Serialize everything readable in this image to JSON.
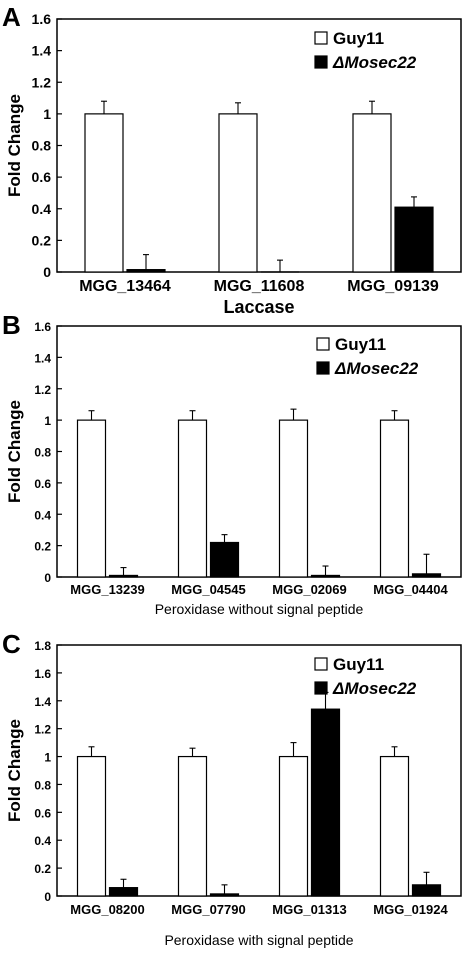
{
  "chart_data": [
    {
      "type": "bar",
      "panel": "A",
      "ylabel": "Fold Change",
      "xlabel": "Laccase",
      "ylim": [
        0,
        1.6
      ],
      "yticks": [
        "0",
        "0.2",
        "0.4",
        "0.6",
        "0.8",
        "1",
        "1.2",
        "1.4",
        "1.6"
      ],
      "legend_position": "top-right",
      "categories": [
        "MGG_13464",
        "MGG_11608",
        "MGG_09139"
      ],
      "series": [
        {
          "name": "Guy11",
          "fill": "#ffffff",
          "values": [
            1.0,
            1.0,
            1.0
          ],
          "errors": [
            0.08,
            0.07,
            0.08
          ]
        },
        {
          "name": "ΔMosec22",
          "fill": "#000000",
          "values": [
            0.015,
            0.0,
            0.41
          ],
          "errors": [
            0.095,
            0.075,
            0.065
          ]
        }
      ]
    },
    {
      "type": "bar",
      "panel": "B",
      "ylabel": "Fold Change",
      "xlabel": "Peroxidase without signal peptide",
      "ylim": [
        0,
        1.6
      ],
      "yticks": [
        "0",
        "0.2",
        "0.4",
        "0.6",
        "0.8",
        "1",
        "1.2",
        "1.4",
        "1.6"
      ],
      "legend_position": "top-right",
      "categories": [
        "MGG_13239",
        "MGG_04545",
        "MGG_02069",
        "MGG_04404"
      ],
      "series": [
        {
          "name": "Guy11",
          "fill": "#ffffff",
          "values": [
            1.0,
            1.0,
            1.0,
            1.0
          ],
          "errors": [
            0.06,
            0.06,
            0.07,
            0.06
          ]
        },
        {
          "name": "ΔMosec22",
          "fill": "#000000",
          "values": [
            0.01,
            0.22,
            0.01,
            0.02
          ],
          "errors": [
            0.05,
            0.05,
            0.06,
            0.125
          ]
        }
      ]
    },
    {
      "type": "bar",
      "panel": "C",
      "ylabel": "Fold Change",
      "xlabel": "Peroxidase with signal peptide",
      "ylim": [
        0,
        1.8
      ],
      "yticks": [
        "0",
        "0.2",
        "0.4",
        "0.6",
        "0.8",
        "1",
        "1.2",
        "1.4",
        "1.6",
        "1.8"
      ],
      "legend_position": "top-right",
      "categories": [
        "MGG_08200",
        "MGG_07790",
        "MGG_01313",
        "MGG_01924"
      ],
      "series": [
        {
          "name": "Guy11",
          "fill": "#ffffff",
          "values": [
            1.0,
            1.0,
            1.0,
            1.0
          ],
          "errors": [
            0.07,
            0.06,
            0.1,
            0.07
          ]
        },
        {
          "name": "ΔMosec22",
          "fill": "#000000",
          "values": [
            0.06,
            0.015,
            1.34,
            0.08
          ],
          "errors": [
            0.06,
            0.065,
            0.12,
            0.09
          ]
        }
      ]
    }
  ]
}
